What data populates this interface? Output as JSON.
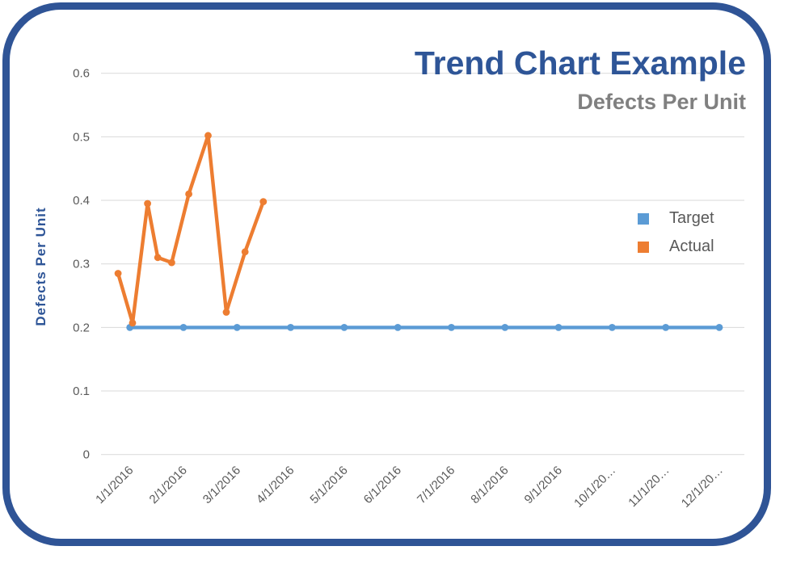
{
  "chart_data": {
    "type": "line",
    "title": "Trend Chart Example",
    "subtitle": "Defects Per Unit",
    "ylabel": "Defects Per Unit",
    "xlabel": "",
    "ylim": [
      0,
      0.6
    ],
    "yticks": [
      0,
      0.1,
      0.2,
      0.3,
      0.4,
      0.5,
      0.6
    ],
    "ytick_labels": [
      "0",
      "0.1",
      "0.2",
      "0.3",
      "0.4",
      "0.5",
      "0.6"
    ],
    "xtick_labels": [
      "1/1/2016",
      "2/1/2016",
      "3/1/2016",
      "4/1/2016",
      "5/1/2016",
      "6/1/2016",
      "7/1/2016",
      "8/1/2016",
      "9/1/2016",
      "10/1/20…",
      "11/1/20…",
      "12/1/20…"
    ],
    "grid": true,
    "legend": {
      "position": "right",
      "entries": [
        "Target",
        "Actual"
      ]
    },
    "series": [
      {
        "name": "Target",
        "color": "#5B9BD5",
        "marker": "circle",
        "x_months": [
          0,
          1,
          2,
          3,
          4,
          5,
          6,
          7,
          8,
          9,
          10,
          11
        ],
        "values": [
          0.2,
          0.2,
          0.2,
          0.2,
          0.2,
          0.2,
          0.2,
          0.2,
          0.2,
          0.2,
          0.2,
          0.2
        ]
      },
      {
        "name": "Actual",
        "color": "#ED7D31",
        "marker": "circle",
        "x_months": [
          -0.22,
          0.05,
          0.33,
          0.52,
          0.78,
          1.1,
          1.46,
          1.8,
          2.15,
          2.49
        ],
        "values": [
          0.285,
          0.207,
          0.395,
          0.31,
          0.302,
          0.41,
          0.502,
          0.224,
          0.319,
          0.398
        ]
      }
    ]
  },
  "colors": {
    "title": "#2E5597",
    "subtitle": "#808080",
    "axis_text": "#595959",
    "gridline": "#D9D9D9",
    "frame_border": "#2F5496",
    "target": "#5B9BD5",
    "actual": "#ED7D31"
  }
}
